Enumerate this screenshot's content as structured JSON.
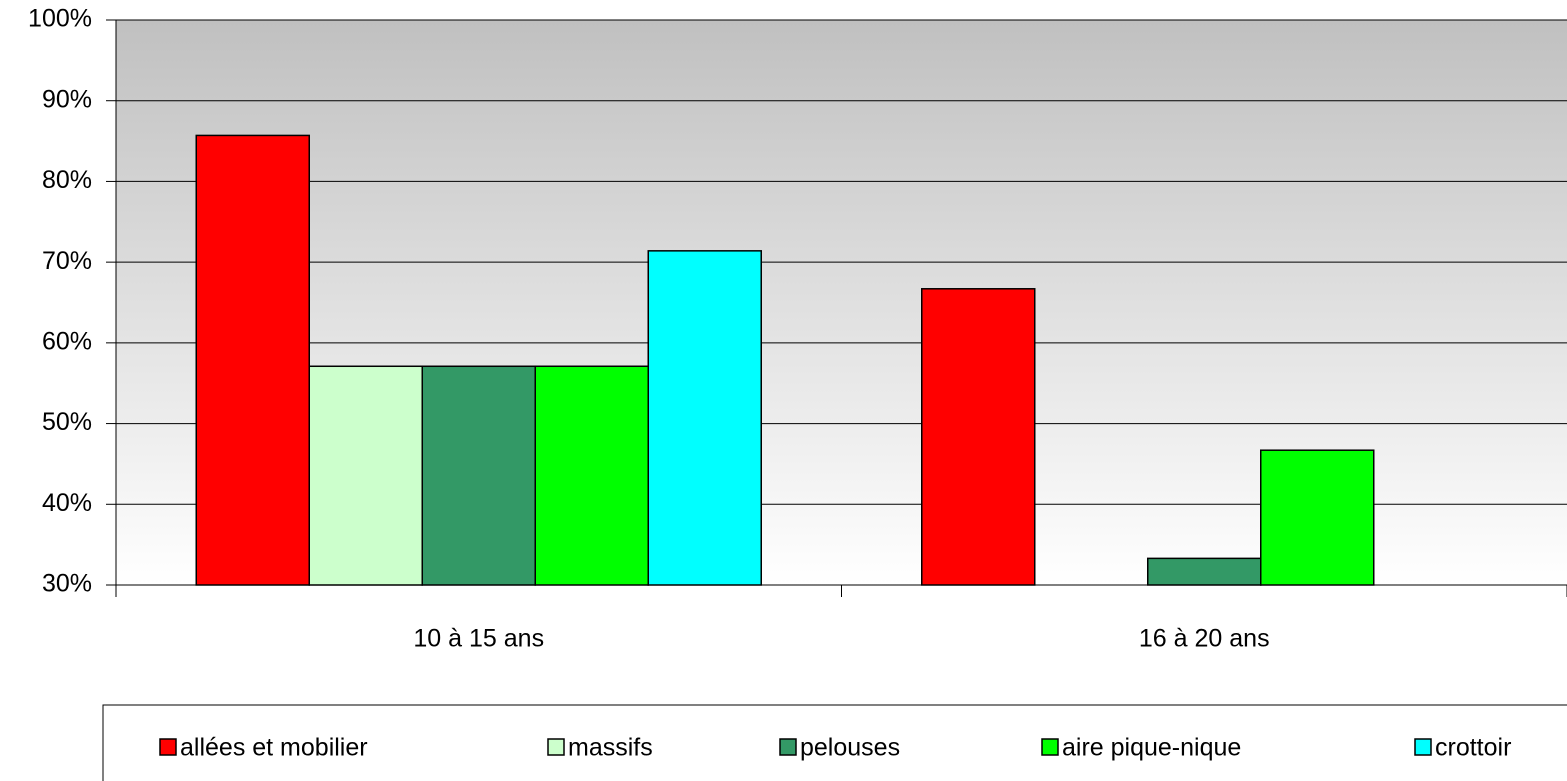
{
  "chart_data": {
    "type": "bar",
    "categories": [
      "10 à 15 ans",
      "16 à 20 ans"
    ],
    "series": [
      {
        "name": "allées et mobilier",
        "color": "#ff0000",
        "values": [
          85.7,
          66.7
        ]
      },
      {
        "name": "massifs",
        "color": "#ccffcc",
        "values": [
          57.1,
          null
        ]
      },
      {
        "name": "pelouses",
        "color": "#339966",
        "values": [
          57.1,
          33.3
        ]
      },
      {
        "name": "aire pique-nique",
        "color": "#00ff00",
        "values": [
          57.1,
          46.7
        ]
      },
      {
        "name": "crottoir",
        "color": "#00ffff",
        "values": [
          71.4,
          null
        ]
      }
    ],
    "ylim": [
      30,
      100
    ],
    "yticks": [
      {
        "value": 30,
        "label": "30%"
      },
      {
        "value": 40,
        "label": "40%"
      },
      {
        "value": 50,
        "label": "50%"
      },
      {
        "value": 60,
        "label": "60%"
      },
      {
        "value": 70,
        "label": "70%"
      },
      {
        "value": 80,
        "label": "80%"
      },
      {
        "value": 90,
        "label": "90%"
      },
      {
        "value": 100,
        "label": "100%"
      }
    ],
    "grid": true,
    "legend": "bottom"
  }
}
